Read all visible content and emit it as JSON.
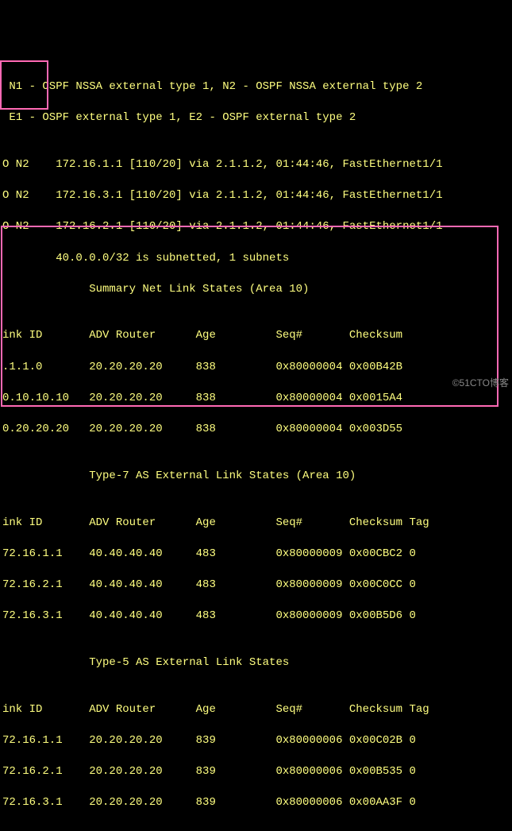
{
  "header": {
    "line1": " N1 - OSPF NSSA external type 1, N2 - OSPF NSSA external type 2",
    "line2": " E1 - OSPF external type 1, E2 - OSPF external type 2",
    "line3": ""
  },
  "routes": {
    "r1": "O N2    172.16.1.1 [110/20] via 2.1.1.2, 01:44:46, FastEthernet1/1",
    "r2": "O N2    172.16.3.1 [110/20] via 2.1.1.2, 01:44:46, FastEthernet1/1",
    "r3": "O N2    172.16.2.1 [110/20] via 2.1.1.2, 01:44:46, FastEthernet1/1",
    "subnet": "        40.0.0.0/32 is subnetted, 1 subnets"
  },
  "summary": {
    "title": "             Summary Net Link States (Area 10)",
    "blank": "",
    "hdr": "ink ID       ADV Router      Age         Seq#       Checksum",
    "row1": ".1.1.0       20.20.20.20     838         0x80000004 0x00B42B",
    "row2": "0.10.10.10   20.20.20.20     838         0x80000004 0x0015A4",
    "row3": "0.20.20.20   20.20.20.20     838         0x80000004 0x003D55"
  },
  "type7": {
    "blank1": "",
    "title": "             Type-7 AS External Link States (Area 10)",
    "blank2": "",
    "hdr": "ink ID       ADV Router      Age         Seq#       Checksum Tag",
    "row1": "72.16.1.1    40.40.40.40     483         0x80000009 0x00CBC2 0",
    "row2": "72.16.2.1    40.40.40.40     483         0x80000009 0x00C0CC 0",
    "row3": "72.16.3.1    40.40.40.40     483         0x80000009 0x00B5D6 0"
  },
  "type5": {
    "blank1": "",
    "title": "             Type-5 AS External Link States",
    "blank2": "",
    "hdr": "ink ID       ADV Router      Age         Seq#       Checksum Tag",
    "row1": "72.16.1.1    20.20.20.20     839         0x80000006 0x00C02B 0",
    "row2": "72.16.2.1    20.20.20.20     839         0x80000006 0x00B535 0",
    "row3": "72.16.3.1    20.20.20.20     839         0x80000006 0x00AA3F 0"
  },
  "watermark": "©51CTO博客"
}
